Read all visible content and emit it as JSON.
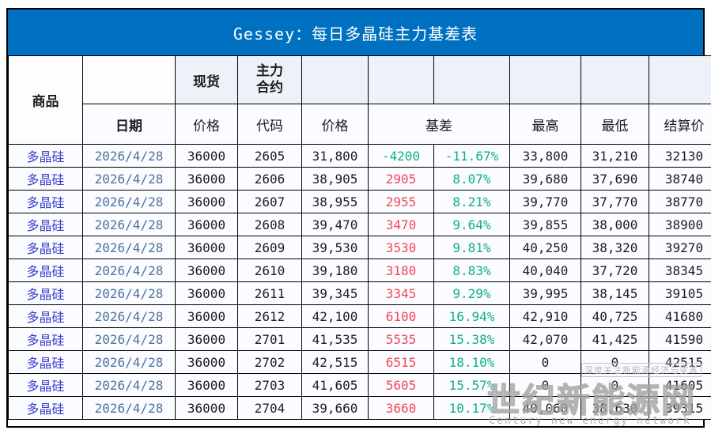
{
  "title": "Gessey：每日多晶硅主力基差表",
  "colors": {
    "accent_blue": "#0070C0",
    "commodity_text": "#3d3dcc",
    "date_text": "#51709e",
    "basis_positive_red": "#f5455a",
    "basis_negative_green": "#12b07e",
    "header_fill": "#edf1f8",
    "row_fill": "#fafcff"
  },
  "header": {
    "commodity": "商品",
    "date": "日期",
    "spot": "现货",
    "main_contract_line1": "主力",
    "main_contract_line2": "合约",
    "spot_price": "价格",
    "code": "代码",
    "price": "价格",
    "basis": "基差",
    "high": "最高",
    "low": "最低",
    "settlement": "结算价"
  },
  "table": {
    "rows": [
      {
        "commodity": "多晶硅",
        "date": "2026/4/28",
        "spot": "36000",
        "code": "2605",
        "price": "31,800",
        "basis": "-4200",
        "basis_pct": "-11.67%",
        "high": "33,800",
        "low": "31,210",
        "settle": "32130"
      },
      {
        "commodity": "多晶硅",
        "date": "2026/4/28",
        "spot": "36000",
        "code": "2606",
        "price": "38,905",
        "basis": "2905",
        "basis_pct": "8.07%",
        "high": "39,680",
        "low": "37,690",
        "settle": "38740"
      },
      {
        "commodity": "多晶硅",
        "date": "2026/4/28",
        "spot": "36000",
        "code": "2607",
        "price": "38,955",
        "basis": "2955",
        "basis_pct": "8.21%",
        "high": "39,770",
        "low": "37,770",
        "settle": "38770"
      },
      {
        "commodity": "多晶硅",
        "date": "2026/4/28",
        "spot": "36000",
        "code": "2608",
        "price": "39,470",
        "basis": "3470",
        "basis_pct": "9.64%",
        "high": "39,855",
        "low": "38,000",
        "settle": "38900"
      },
      {
        "commodity": "多晶硅",
        "date": "2026/4/28",
        "spot": "36000",
        "code": "2609",
        "price": "39,530",
        "basis": "3530",
        "basis_pct": "9.81%",
        "high": "40,250",
        "low": "38,320",
        "settle": "39270"
      },
      {
        "commodity": "多晶硅",
        "date": "2026/4/28",
        "spot": "36000",
        "code": "2610",
        "price": "39,180",
        "basis": "3180",
        "basis_pct": "8.83%",
        "high": "40,040",
        "low": "37,720",
        "settle": "38345"
      },
      {
        "commodity": "多晶硅",
        "date": "2026/4/28",
        "spot": "36000",
        "code": "2611",
        "price": "39,345",
        "basis": "3345",
        "basis_pct": "9.29%",
        "high": "39,995",
        "low": "38,145",
        "settle": "39105"
      },
      {
        "commodity": "多晶硅",
        "date": "2026/4/28",
        "spot": "36000",
        "code": "2612",
        "price": "42,100",
        "basis": "6100",
        "basis_pct": "16.94%",
        "high": "42,910",
        "low": "40,725",
        "settle": "41680"
      },
      {
        "commodity": "多晶硅",
        "date": "2026/4/28",
        "spot": "36000",
        "code": "2701",
        "price": "41,535",
        "basis": "5535",
        "basis_pct": "15.38%",
        "high": "42,070",
        "low": "41,425",
        "settle": "41590"
      },
      {
        "commodity": "多晶硅",
        "date": "2026/4/28",
        "spot": "36000",
        "code": "2702",
        "price": "42,515",
        "basis": "6515",
        "basis_pct": "18.10%",
        "high": "0",
        "low": "0",
        "settle": "42515"
      },
      {
        "commodity": "多晶硅",
        "date": "2026/4/28",
        "spot": "36000",
        "code": "2703",
        "price": "41,605",
        "basis": "5605",
        "basis_pct": "15.57%",
        "high": "0",
        "low": "0",
        "settle": "41605"
      },
      {
        "commodity": "多晶硅",
        "date": "2026/4/28",
        "spot": "36000",
        "code": "2704",
        "price": "39,660",
        "basis": "3660",
        "basis_pct": "10.17%",
        "high": "40,060",
        "low": "38,630",
        "settle": "39315"
      }
    ]
  },
  "watermark": {
    "slogan": "深度关注新能源经济与变革",
    "name": "世纪新能源网",
    "english": "Century new energy network"
  }
}
